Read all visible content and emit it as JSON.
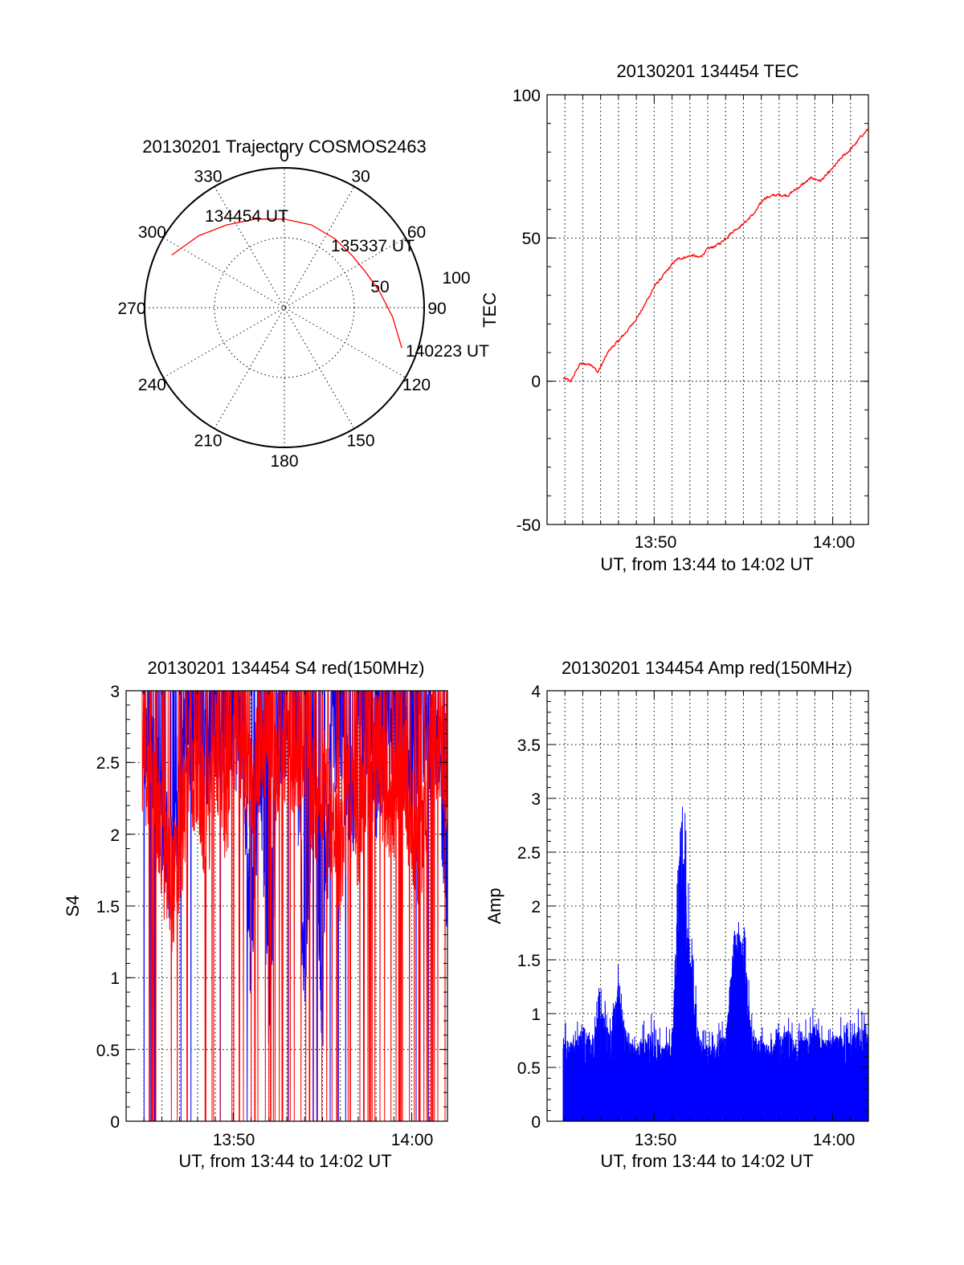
{
  "colors": {
    "red": "#ff0000",
    "blue": "#0000ff"
  },
  "chart_data": [
    {
      "type": "polar",
      "title": "20130201 Trajectory COSMOS2463",
      "azimuth_labels": [
        "0",
        "30",
        "60",
        "90",
        "120",
        "150",
        "180",
        "210",
        "240",
        "270",
        "300",
        "330"
      ],
      "radial_labels": [
        "50",
        "100"
      ],
      "trajectory": {
        "color": "red",
        "points": [
          {
            "az": 295,
            "el": 10
          },
          {
            "az": 310,
            "el": 18
          },
          {
            "az": 325,
            "el": 25
          },
          {
            "az": 342,
            "el": 30
          },
          {
            "az": 0,
            "el": 33
          },
          {
            "az": 18,
            "el": 34
          },
          {
            "az": 36,
            "el": 35
          },
          {
            "az": 52,
            "el": 35
          },
          {
            "az": 66,
            "el": 33
          },
          {
            "az": 80,
            "el": 28
          },
          {
            "az": 95,
            "el": 20
          },
          {
            "az": 109,
            "el": 10
          }
        ],
        "annotations": [
          {
            "text": "134454 UT"
          },
          {
            "text": "135337 UT"
          },
          {
            "text": "140223 UT"
          }
        ]
      }
    },
    {
      "type": "line",
      "title": "20130201 134454 TEC",
      "xlabel": "UT, from 13:44 to 14:02 UT",
      "ylabel": "TEC",
      "xlim": [
        "13:44",
        "14:02"
      ],
      "ylim": [
        -50,
        100
      ],
      "yticks": [
        "-50",
        "0",
        "50",
        "100"
      ],
      "xticks": [
        "13:50",
        "14:00"
      ],
      "series": [
        {
          "color": "red",
          "x": [
            "13:44:54",
            "13:45:20",
            "13:45:50",
            "13:46:30",
            "13:46:50",
            "13:47:30",
            "13:48:00",
            "13:48:40",
            "13:49:20",
            "13:50:00",
            "13:50:40",
            "13:51:10",
            "13:51:30",
            "13:52:10",
            "13:52:30",
            "13:53:00",
            "13:53:40",
            "13:54:20",
            "13:55:00",
            "13:55:40",
            "13:56:10",
            "13:56:50",
            "13:57:30",
            "13:58:10",
            "13:58:50",
            "13:59:20",
            "13:59:50",
            "14:00:30",
            "14:01:10",
            "14:01:40",
            "14:02:00"
          ],
          "values": [
            1,
            0,
            6,
            6,
            3,
            11,
            14,
            19,
            25,
            33,
            38,
            42,
            43,
            44,
            43,
            46,
            48,
            52,
            55,
            59,
            64,
            65,
            65,
            68,
            71,
            70,
            73,
            78,
            82,
            86,
            88
          ]
        }
      ]
    },
    {
      "type": "line",
      "title": "20130201 134454 S4 red(150MHz)",
      "xlabel": "UT, from 13:44 to 14:02 UT",
      "ylabel": "S4",
      "xlim": [
        "13:44",
        "14:02"
      ],
      "ylim": [
        0,
        3
      ],
      "yticks": [
        "0",
        "0.5",
        "1",
        "1.5",
        "2",
        "2.5",
        "3"
      ],
      "xticks": [
        "13:50",
        "14:00"
      ],
      "series": [
        {
          "color": "red",
          "x": [
            "13:44:54",
            "13:45:30",
            "13:46:00",
            "13:46:30",
            "13:47:00",
            "13:47:30",
            "13:48:00",
            "13:48:30",
            "13:49:00",
            "13:49:30",
            "13:50:00",
            "13:50:30",
            "13:51:00",
            "13:51:30",
            "13:52:00",
            "13:52:30",
            "13:53:00",
            "13:53:30",
            "13:54:00",
            "13:54:30",
            "13:55:00",
            "13:55:30",
            "13:56:00",
            "13:56:30",
            "13:57:00",
            "13:57:30",
            "13:58:00",
            "13:58:30",
            "13:59:00",
            "13:59:30",
            "14:00:00",
            "14:00:30",
            "14:01:00",
            "14:01:30",
            "14:02:00"
          ],
          "values": [
            2.6,
            2.3,
            1.9,
            1.6,
            1.8,
            2.5,
            2.4,
            2.0,
            2.6,
            2.2,
            2.5,
            2.7,
            2.3,
            2.6,
            2.8,
            2.4,
            2.7,
            2.5,
            2.6,
            2.2,
            2.4,
            2.1,
            1.8,
            2.3,
            2.0,
            2.5,
            2.6,
            2.3,
            2.2,
            2.6,
            2.0,
            1.9,
            2.5,
            2.7,
            2.4
          ]
        },
        {
          "color": "blue",
          "x": [
            "13:44:54",
            "13:45:30",
            "13:46:00",
            "13:46:30",
            "13:47:00",
            "13:47:30",
            "13:48:00",
            "13:48:30",
            "13:49:00",
            "13:49:30",
            "13:50:00",
            "13:50:30",
            "13:51:00",
            "13:51:30",
            "13:52:00",
            "13:52:30",
            "13:53:00",
            "13:53:30",
            "13:54:00",
            "13:54:30",
            "13:55:00",
            "13:55:30",
            "13:56:00",
            "13:56:30",
            "13:57:00",
            "13:57:30",
            "13:58:00",
            "13:58:30",
            "13:59:00",
            "13:59:30",
            "14:00:00",
            "14:00:30",
            "14:01:00",
            "14:01:30",
            "14:02:00"
          ],
          "values": [
            2.8,
            2.5,
            2.2,
            1.7,
            2.4,
            2.7,
            2.8,
            2.6,
            2.8,
            2.7,
            2.8,
            2.6,
            1.2,
            2.7,
            0.8,
            2.8,
            2.7,
            2.8,
            1.0,
            2.6,
            0.8,
            2.7,
            2.8,
            2.1,
            2.6,
            2.8,
            2.2,
            2.7,
            2.8,
            2.6,
            2.3,
            2.8,
            2.7,
            2.5,
            1.7
          ]
        }
      ]
    },
    {
      "type": "line",
      "title": "20130201 134454 Amp red(150MHz)",
      "xlabel": "UT, from 13:44 to 14:02 UT",
      "ylabel": "Amp",
      "xlim": [
        "13:44",
        "14:02"
      ],
      "ylim": [
        0,
        4
      ],
      "yticks": [
        "0",
        "0.5",
        "1",
        "1.5",
        "2",
        "2.5",
        "3",
        "3.5",
        "4"
      ],
      "xticks": [
        "13:50",
        "14:00"
      ],
      "series": [
        {
          "color": "blue",
          "x": [
            "13:44:54",
            "13:45:30",
            "13:46:00",
            "13:46:30",
            "13:47:00",
            "13:47:30",
            "13:48:00",
            "13:48:30",
            "13:49:00",
            "13:49:30",
            "13:50:00",
            "13:50:30",
            "13:51:00",
            "13:51:30",
            "13:52:00",
            "13:52:30",
            "13:53:00",
            "13:53:30",
            "13:54:00",
            "13:54:30",
            "13:55:00",
            "13:55:30",
            "13:56:00",
            "13:56:30",
            "13:57:00",
            "13:57:30",
            "13:58:00",
            "13:58:30",
            "13:59:00",
            "13:59:30",
            "14:00:00",
            "14:00:30",
            "14:01:00",
            "14:01:30",
            "14:02:00"
          ],
          "values": [
            0.8,
            0.7,
            0.9,
            0.75,
            1.1,
            0.8,
            1.3,
            0.75,
            0.7,
            0.8,
            0.85,
            0.7,
            0.8,
            3.1,
            1.6,
            0.8,
            0.7,
            0.75,
            0.8,
            1.8,
            1.7,
            0.8,
            0.75,
            0.7,
            0.8,
            0.85,
            0.75,
            0.8,
            0.9,
            0.75,
            0.8,
            0.85,
            0.8,
            0.9,
            0.8
          ]
        }
      ]
    }
  ]
}
